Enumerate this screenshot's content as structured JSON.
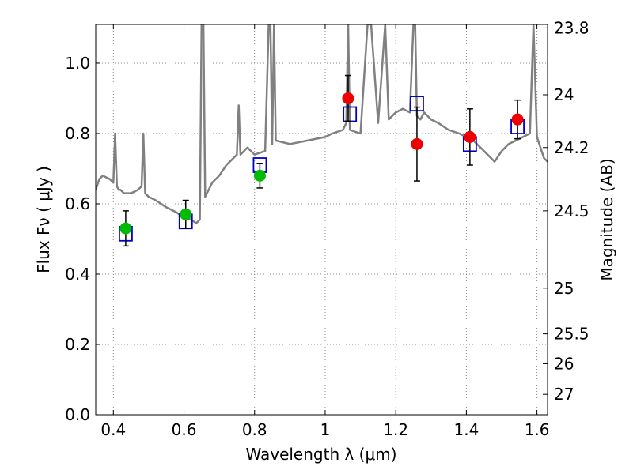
{
  "chart_data": {
    "type": "scatter",
    "title": "",
    "xlabel": "Wavelength  λ (μm)",
    "ylabel": "Flux  Fν  ( μJy )",
    "y2label": "Magnitude (AB)",
    "xlim": [
      0.35,
      1.63
    ],
    "ylim": [
      0.0,
      1.11
    ],
    "grid": true,
    "x_ticks": [
      0.4,
      0.6,
      0.8,
      1.0,
      1.2,
      1.4,
      1.6
    ],
    "x_tick_labels": [
      "0.4",
      "0.6",
      "0.8",
      "1",
      "1.2",
      "1.4",
      "1.6"
    ],
    "y_ticks": [
      0.0,
      0.2,
      0.4,
      0.6,
      0.8,
      1.0
    ],
    "y_tick_labels": [
      "0.0",
      "0.2",
      "0.4",
      "0.6",
      "0.8",
      "1.0"
    ],
    "y2_ticks": [
      {
        "label": "23.8",
        "flux": 1.1
      },
      {
        "label": "24",
        "flux": 0.91
      },
      {
        "label": "24.2",
        "flux": 0.76
      },
      {
        "label": "24.5",
        "flux": 0.58
      },
      {
        "label": "25",
        "flux": 0.36
      },
      {
        "label": "25.5",
        "flux": 0.23
      },
      {
        "label": "26",
        "flux": 0.145
      },
      {
        "label": "27",
        "flux": 0.058
      }
    ],
    "colors": {
      "model": "#808080",
      "green_points": "#00bb00",
      "red_points": "#ee0000",
      "boxes": "#0000cc",
      "errorbars": "#000000",
      "grid": "#888888"
    },
    "series": [
      {
        "name": "model spectrum",
        "kind": "line",
        "x": [
          0.35,
          0.36,
          0.37,
          0.38,
          0.39,
          0.4,
          0.405,
          0.41,
          0.415,
          0.42,
          0.43,
          0.45,
          0.47,
          0.48,
          0.485,
          0.49,
          0.5,
          0.52,
          0.55,
          0.58,
          0.6,
          0.62,
          0.635,
          0.645,
          0.65,
          0.655,
          0.66,
          0.67,
          0.68,
          0.7,
          0.72,
          0.75,
          0.755,
          0.76,
          0.78,
          0.8,
          0.83,
          0.84,
          0.845,
          0.85,
          0.855,
          0.86,
          0.9,
          0.95,
          1.0,
          1.02,
          1.05,
          1.06,
          1.065,
          1.07,
          1.1,
          1.12,
          1.13,
          1.15,
          1.17,
          1.18,
          1.19,
          1.2,
          1.22,
          1.24,
          1.25,
          1.255,
          1.26,
          1.27,
          1.28,
          1.3,
          1.32,
          1.35,
          1.38,
          1.4,
          1.42,
          1.44,
          1.46,
          1.48,
          1.5,
          1.52,
          1.54,
          1.56,
          1.58,
          1.59,
          1.6,
          1.62,
          1.63
        ],
        "y": [
          0.64,
          0.67,
          0.68,
          0.675,
          0.67,
          0.66,
          0.8,
          0.65,
          0.64,
          0.64,
          0.63,
          0.63,
          0.64,
          0.65,
          0.8,
          0.63,
          0.62,
          0.61,
          0.59,
          0.575,
          0.56,
          0.555,
          0.545,
          0.555,
          1.11,
          1.11,
          0.62,
          0.64,
          0.66,
          0.68,
          0.71,
          0.74,
          0.88,
          0.74,
          0.76,
          0.74,
          0.75,
          1.11,
          1.11,
          0.77,
          1.11,
          0.78,
          0.77,
          0.78,
          0.79,
          0.8,
          0.81,
          0.83,
          1.11,
          0.81,
          0.8,
          1.11,
          1.11,
          0.83,
          1.11,
          0.84,
          0.85,
          0.86,
          0.87,
          0.86,
          1.11,
          1.11,
          0.85,
          0.84,
          0.86,
          0.84,
          0.83,
          0.81,
          0.8,
          0.79,
          0.78,
          0.76,
          0.74,
          0.72,
          0.75,
          0.77,
          0.78,
          0.79,
          0.8,
          1.11,
          0.79,
          0.73,
          0.72
        ]
      },
      {
        "name": "model photometry (boxes)",
        "kind": "box",
        "x": [
          0.435,
          0.605,
          0.815,
          1.07,
          1.26,
          1.41,
          1.545
        ],
        "y": [
          0.515,
          0.55,
          0.71,
          0.855,
          0.885,
          0.77,
          0.82
        ]
      },
      {
        "name": "observed (green)",
        "kind": "point",
        "x": [
          0.435,
          0.605,
          0.815
        ],
        "y": [
          0.53,
          0.57,
          0.68
        ],
        "err": [
          0.05,
          0.04,
          0.035
        ]
      },
      {
        "name": "observed (red)",
        "kind": "point",
        "x": [
          1.065,
          1.26,
          1.41,
          1.545
        ],
        "y": [
          0.9,
          0.77,
          0.79,
          0.84
        ],
        "err": [
          0.065,
          0.105,
          0.08,
          0.055
        ]
      }
    ]
  }
}
